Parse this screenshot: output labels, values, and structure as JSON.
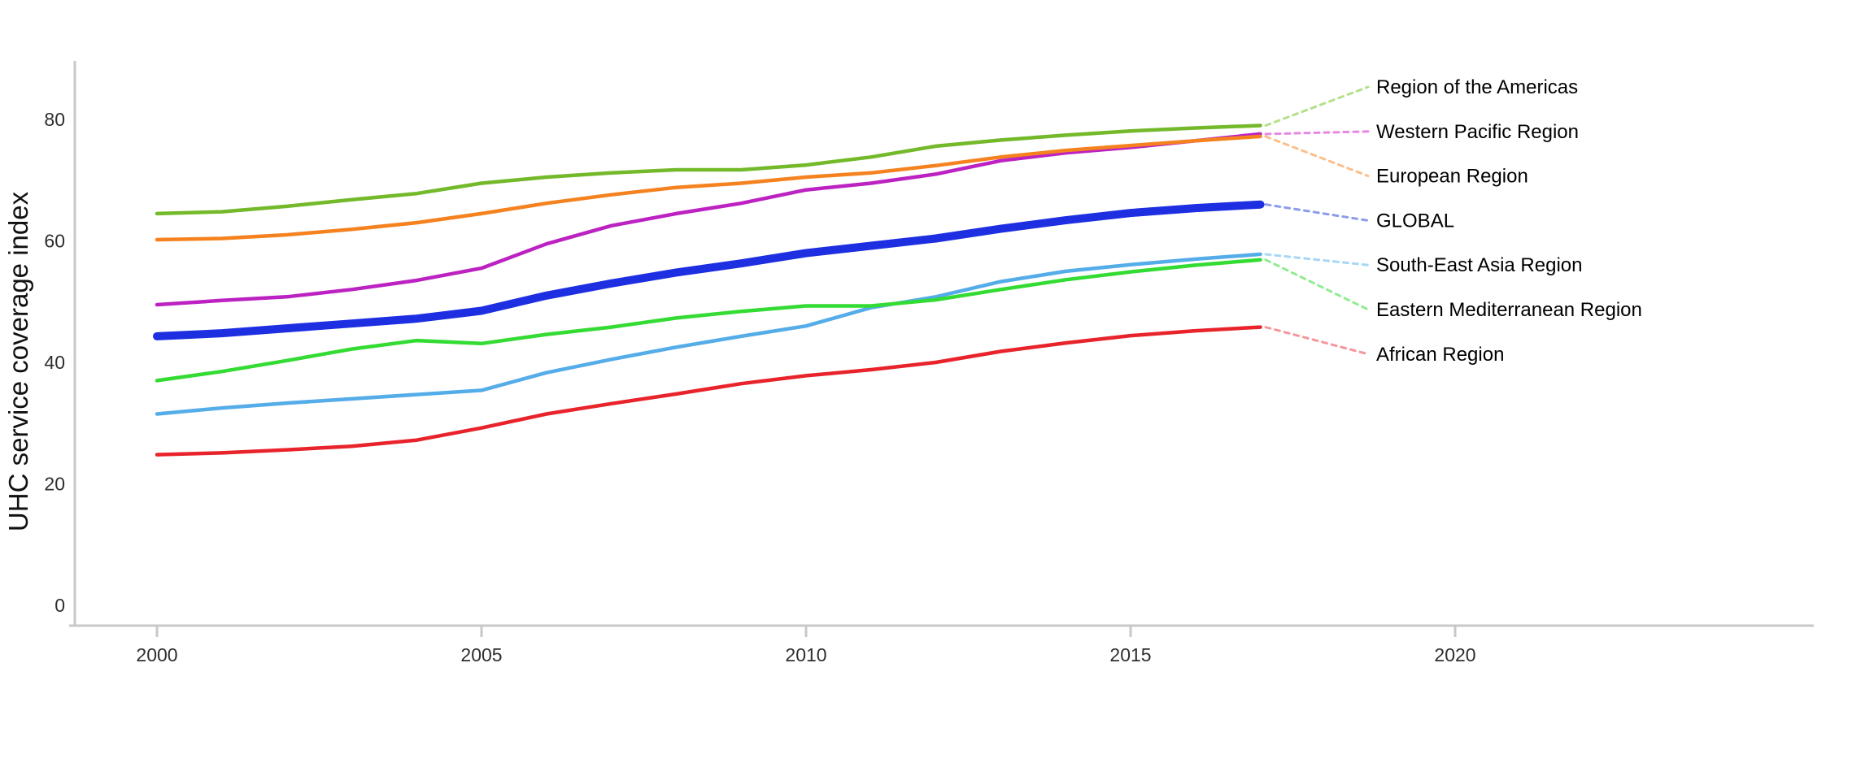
{
  "page": {
    "background": "#ffffff"
  },
  "chart_data": {
    "type": "line",
    "title": "",
    "xlabel": "",
    "ylabel": "UHC service coverage index",
    "x": [
      2000,
      2001,
      2002,
      2003,
      2004,
      2005,
      2006,
      2007,
      2008,
      2009,
      2010,
      2011,
      2012,
      2013,
      2014,
      2015,
      2016,
      2017
    ],
    "x_ticks": [
      2000,
      2005,
      2010,
      2015,
      2020
    ],
    "y_ticks": [
      0,
      20,
      40,
      60,
      80
    ],
    "xlim": [
      1998.6,
      2025.5
    ],
    "ylim": [
      0,
      85
    ],
    "grid": false,
    "legend_position": "right-direct-labels",
    "axis_color": "#c8c8c8",
    "tick_text_color": "#2e2e2e",
    "label_text_color": "#000000",
    "series": [
      {
        "name": "americas",
        "label": "Region of the Americas",
        "color": "#73b92a",
        "leader_color": "#b5e08a",
        "width": 4.5,
        "values": [
          64.5,
          64.8,
          65.7,
          66.8,
          67.8,
          69.5,
          70.5,
          71.2,
          71.7,
          71.7,
          72.5,
          73.8,
          75.6,
          76.6,
          77.4,
          78.1,
          78.6,
          79.0
        ]
      },
      {
        "name": "western-pacific",
        "label": "Western Pacific Region",
        "color": "#bc22c2",
        "leader_color": "#e787e3",
        "width": 4.5,
        "values": [
          49.5,
          50.2,
          50.8,
          52.0,
          53.5,
          55.5,
          59.5,
          62.5,
          64.5,
          66.2,
          68.4,
          69.5,
          71.0,
          73.2,
          74.5,
          75.4,
          76.5,
          77.6
        ]
      },
      {
        "name": "european",
        "label": "European Region",
        "color": "#f5821f",
        "leader_color": "#fbbf8b",
        "width": 4.5,
        "values": [
          60.2,
          60.4,
          61.0,
          61.9,
          63.0,
          64.5,
          66.2,
          67.6,
          68.8,
          69.5,
          70.5,
          71.2,
          72.4,
          73.8,
          74.9,
          75.7,
          76.5,
          77.2
        ]
      },
      {
        "name": "global",
        "label": "GLOBAL",
        "color": "#1e2fe2",
        "leader_color": "#8c9bec",
        "width": 10,
        "values": [
          44.3,
          44.8,
          45.6,
          46.4,
          47.2,
          48.5,
          51.0,
          53.0,
          54.8,
          56.3,
          58.0,
          59.2,
          60.4,
          62.0,
          63.4,
          64.6,
          65.4,
          66.0
        ]
      },
      {
        "name": "south-east-asia",
        "label": "South-East Asia Region",
        "color": "#54ace8",
        "leader_color": "#a8d7f6",
        "width": 4.5,
        "values": [
          31.5,
          32.5,
          33.3,
          34.0,
          34.7,
          35.4,
          38.3,
          40.5,
          42.5,
          44.3,
          46.0,
          49.0,
          50.8,
          53.3,
          55.0,
          56.1,
          57.0,
          57.8
        ]
      },
      {
        "name": "eastern-mediterranean",
        "label": "Eastern Mediterranean Region",
        "color": "#33db33",
        "leader_color": "#8fec8f",
        "width": 4.5,
        "values": [
          37.0,
          38.5,
          40.3,
          42.2,
          43.6,
          43.1,
          44.6,
          45.8,
          47.3,
          48.4,
          49.3,
          49.3,
          50.3,
          52.0,
          53.6,
          54.9,
          56.0,
          56.9
        ]
      },
      {
        "name": "african",
        "label": "African Region",
        "color": "#e9232b",
        "leader_color": "#f4979c",
        "width": 4.5,
        "values": [
          24.8,
          25.1,
          25.6,
          26.2,
          27.2,
          29.2,
          31.5,
          33.2,
          34.8,
          36.5,
          37.8,
          38.8,
          40.0,
          41.8,
          43.2,
          44.4,
          45.2,
          45.8
        ]
      }
    ]
  }
}
